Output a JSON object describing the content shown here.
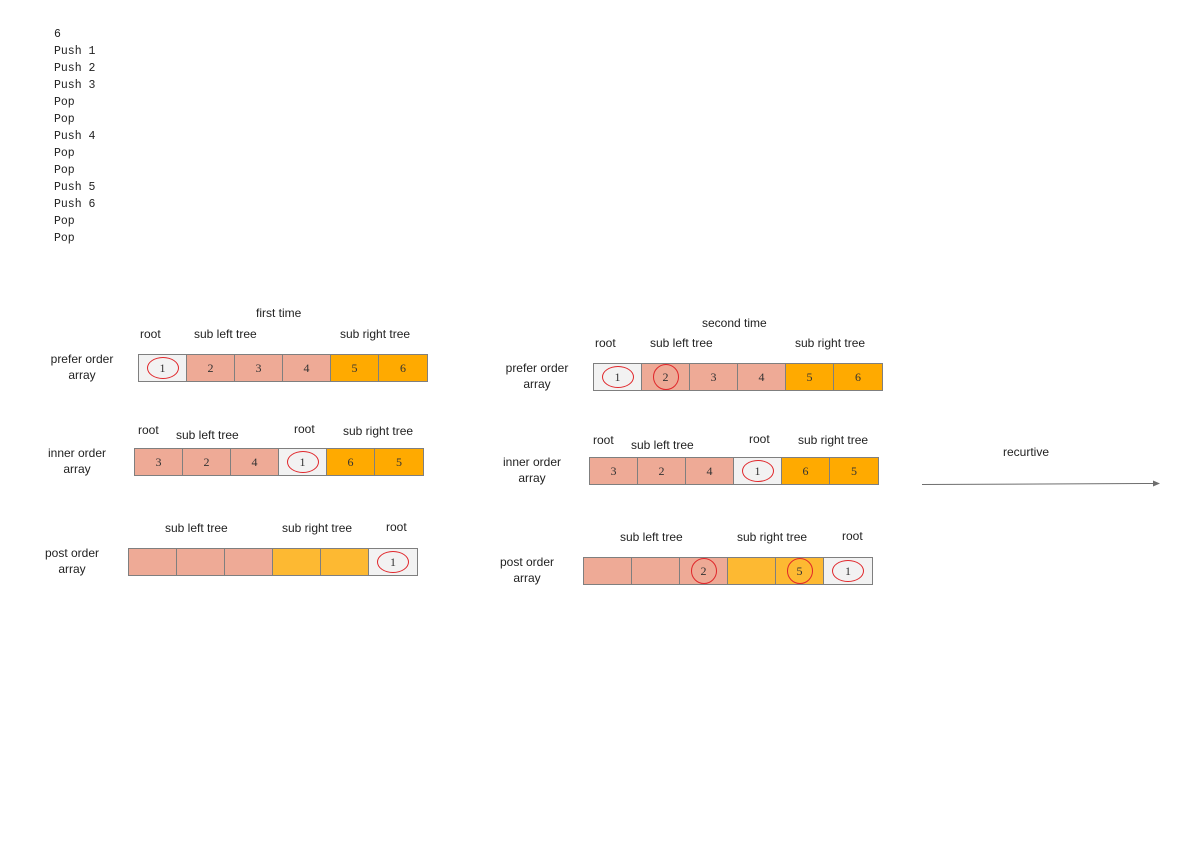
{
  "input_lines": [
    "6",
    "Push 1",
    "Push 2",
    "Push 3",
    "Pop",
    "Pop",
    "Push 4",
    "Pop",
    "Pop",
    "Push 5",
    "Push 6",
    "Pop",
    "Pop"
  ],
  "arrow_label": "recurtive",
  "panels": [
    {
      "title": "first time",
      "prefer": {
        "label": "prefer order array",
        "headers": {
          "root": "root",
          "left": "sub  left tree",
          "right": "sub right tree"
        },
        "cells": [
          {
            "v": "1",
            "k": "root",
            "circle": true
          },
          {
            "v": "2",
            "k": "left"
          },
          {
            "v": "3",
            "k": "left"
          },
          {
            "v": "4",
            "k": "left"
          },
          {
            "v": "5",
            "k": "right"
          },
          {
            "v": "6",
            "k": "right"
          }
        ]
      },
      "inner": {
        "label": "inner order array",
        "headers": {
          "root_left": "root",
          "left": "sub  left tree",
          "root_mid": "root",
          "right": "sub right tree"
        },
        "cells": [
          {
            "v": "3",
            "k": "left"
          },
          {
            "v": "2",
            "k": "left"
          },
          {
            "v": "4",
            "k": "left"
          },
          {
            "v": "1",
            "k": "root",
            "circle": true
          },
          {
            "v": "6",
            "k": "right"
          },
          {
            "v": "5",
            "k": "right"
          }
        ]
      },
      "post": {
        "label": "post order array",
        "headers": {
          "left": "sub  left tree",
          "right": "sub right tree",
          "root": "root"
        },
        "cells": [
          {
            "v": "",
            "k": "left"
          },
          {
            "v": "",
            "k": "left"
          },
          {
            "v": "",
            "k": "left"
          },
          {
            "v": "",
            "k": "right-light"
          },
          {
            "v": "",
            "k": "right-light"
          },
          {
            "v": "1",
            "k": "root",
            "circle": true
          }
        ]
      }
    },
    {
      "title": "second time",
      "prefer": {
        "label": "prefer order array",
        "headers": {
          "root": "root",
          "left": "sub  left tree",
          "right": "sub right tree"
        },
        "cells": [
          {
            "v": "1",
            "k": "root",
            "circle": true
          },
          {
            "v": "2",
            "k": "left",
            "circle": true
          },
          {
            "v": "3",
            "k": "left"
          },
          {
            "v": "4",
            "k": "left"
          },
          {
            "v": "5",
            "k": "right"
          },
          {
            "v": "6",
            "k": "right"
          }
        ]
      },
      "inner": {
        "label": "inner order array",
        "headers": {
          "root_left": "root",
          "left": "sub  left tree",
          "root_mid": "root",
          "right": "sub right tree"
        },
        "cells": [
          {
            "v": "3",
            "k": "left"
          },
          {
            "v": "2",
            "k": "left"
          },
          {
            "v": "4",
            "k": "left"
          },
          {
            "v": "1",
            "k": "root",
            "circle": true
          },
          {
            "v": "6",
            "k": "right"
          },
          {
            "v": "5",
            "k": "right"
          }
        ]
      },
      "post": {
        "label": "post order array",
        "headers": {
          "left": "sub  left tree",
          "right": "sub right tree",
          "root": "root"
        },
        "cells": [
          {
            "v": "",
            "k": "left"
          },
          {
            "v": "",
            "k": "left"
          },
          {
            "v": "2",
            "k": "left",
            "circle": true
          },
          {
            "v": "",
            "k": "right-light"
          },
          {
            "v": "5",
            "k": "right-light",
            "circle": true
          },
          {
            "v": "1",
            "k": "root",
            "circle": true
          }
        ]
      }
    }
  ]
}
